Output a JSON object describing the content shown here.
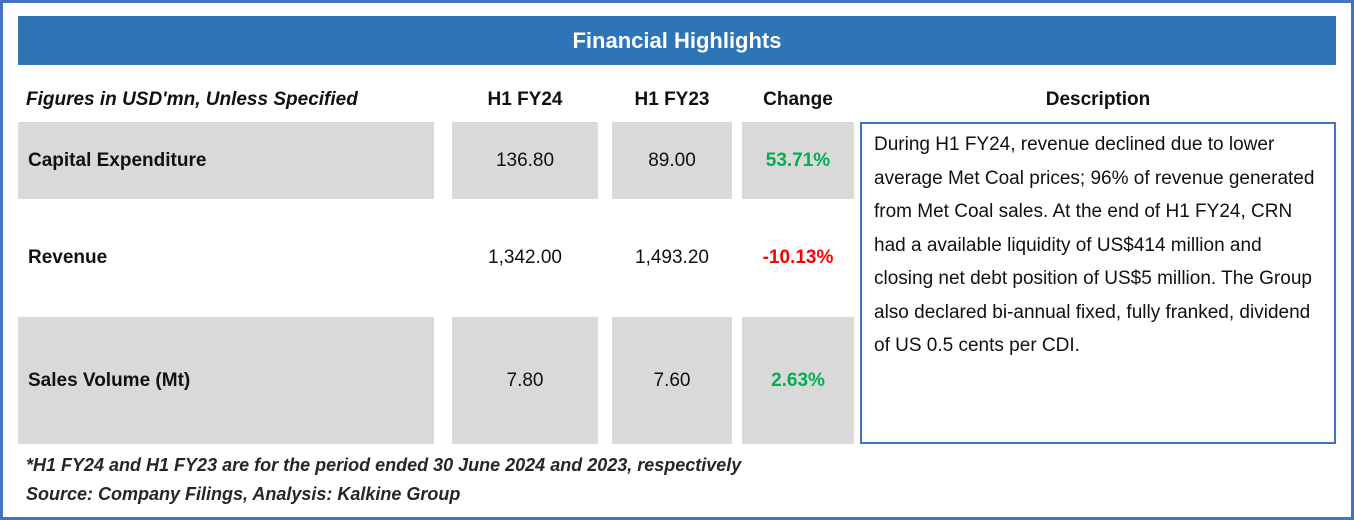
{
  "title": "Financial Highlights",
  "table": {
    "header": {
      "label": "Figures in USD'mn, Unless Specified",
      "fy24": "H1 FY24",
      "fy23": "H1 FY23",
      "change": "Change",
      "description": "Description"
    },
    "rows": [
      {
        "label": "Capital Expenditure",
        "fy24": "136.80",
        "fy23": "89.00",
        "change": "53.71%",
        "change_direction": "positive",
        "shaded": true
      },
      {
        "label": "Revenue",
        "fy24": "1,342.00",
        "fy23": "1,493.20",
        "change": "-10.13%",
        "change_direction": "negative",
        "shaded": false
      },
      {
        "label": "Sales Volume (Mt)",
        "fy24": "7.80",
        "fy23": "7.60",
        "change": "2.63%",
        "change_direction": "positive",
        "shaded": true
      }
    ],
    "description": "During H1 FY24, revenue declined due to lower average Met Coal prices; 96% of revenue generated from Met Coal sales. At the end of H1 FY24, CRN had a available liquidity of US$414 million and closing net debt position of US$5 million. The Group also declared bi-annual fixed, fully franked, dividend of US 0.5 cents per CDI."
  },
  "footnotes": {
    "period_note": "*H1 FY24 and H1 FY23 are for the period ended 30 June 2024 and 2023, respectively",
    "source_note": "Source: Company Filings, Analysis: Kalkine Group"
  },
  "colors": {
    "header_bg": "#2E75B6",
    "outer_border": "#4472C4",
    "shaded_cell_bg": "#D9D9D9",
    "positive_change": "#00B050",
    "negative_change": "#FF0000"
  },
  "chart_data": {
    "type": "table",
    "title": "Financial Highlights",
    "units": "USD'mn, Unless Specified",
    "columns": [
      "Figures in USD'mn, Unless Specified",
      "H1 FY24",
      "H1 FY23",
      "Change"
    ],
    "rows": [
      [
        "Capital Expenditure",
        136.8,
        89.0,
        "53.71%"
      ],
      [
        "Revenue",
        1342.0,
        1493.2,
        "-10.13%"
      ],
      [
        "Sales Volume (Mt)",
        7.8,
        7.6,
        "2.63%"
      ]
    ]
  }
}
